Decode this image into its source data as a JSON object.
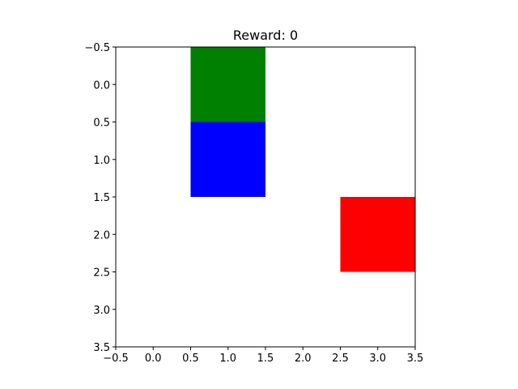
{
  "title": "Reward: 0",
  "chart_data": {
    "type": "heatmap",
    "title": "Reward: 0",
    "xlabel": "",
    "ylabel": "",
    "xlim": [
      -0.5,
      3.5
    ],
    "ylim": [
      3.5,
      -0.5
    ],
    "y_axis_inverted": true,
    "grid": false,
    "x_ticks": [
      "−0.5",
      "0.0",
      "0.5",
      "1.0",
      "1.5",
      "2.0",
      "2.5",
      "3.0",
      "3.5"
    ],
    "y_ticks": [
      "−0.5",
      "0.0",
      "0.5",
      "1.0",
      "1.5",
      "2.0",
      "2.5",
      "3.0",
      "3.5"
    ],
    "grid_size": [
      4,
      4
    ],
    "background_color": "#ffffff",
    "cells": [
      {
        "name": "cell-green",
        "row": 0,
        "col": 1,
        "color": "#008000"
      },
      {
        "name": "cell-blue",
        "row": 1,
        "col": 1,
        "color": "#0000ff"
      },
      {
        "name": "cell-red",
        "row": 2,
        "col": 3,
        "color": "#ff0000"
      }
    ]
  }
}
